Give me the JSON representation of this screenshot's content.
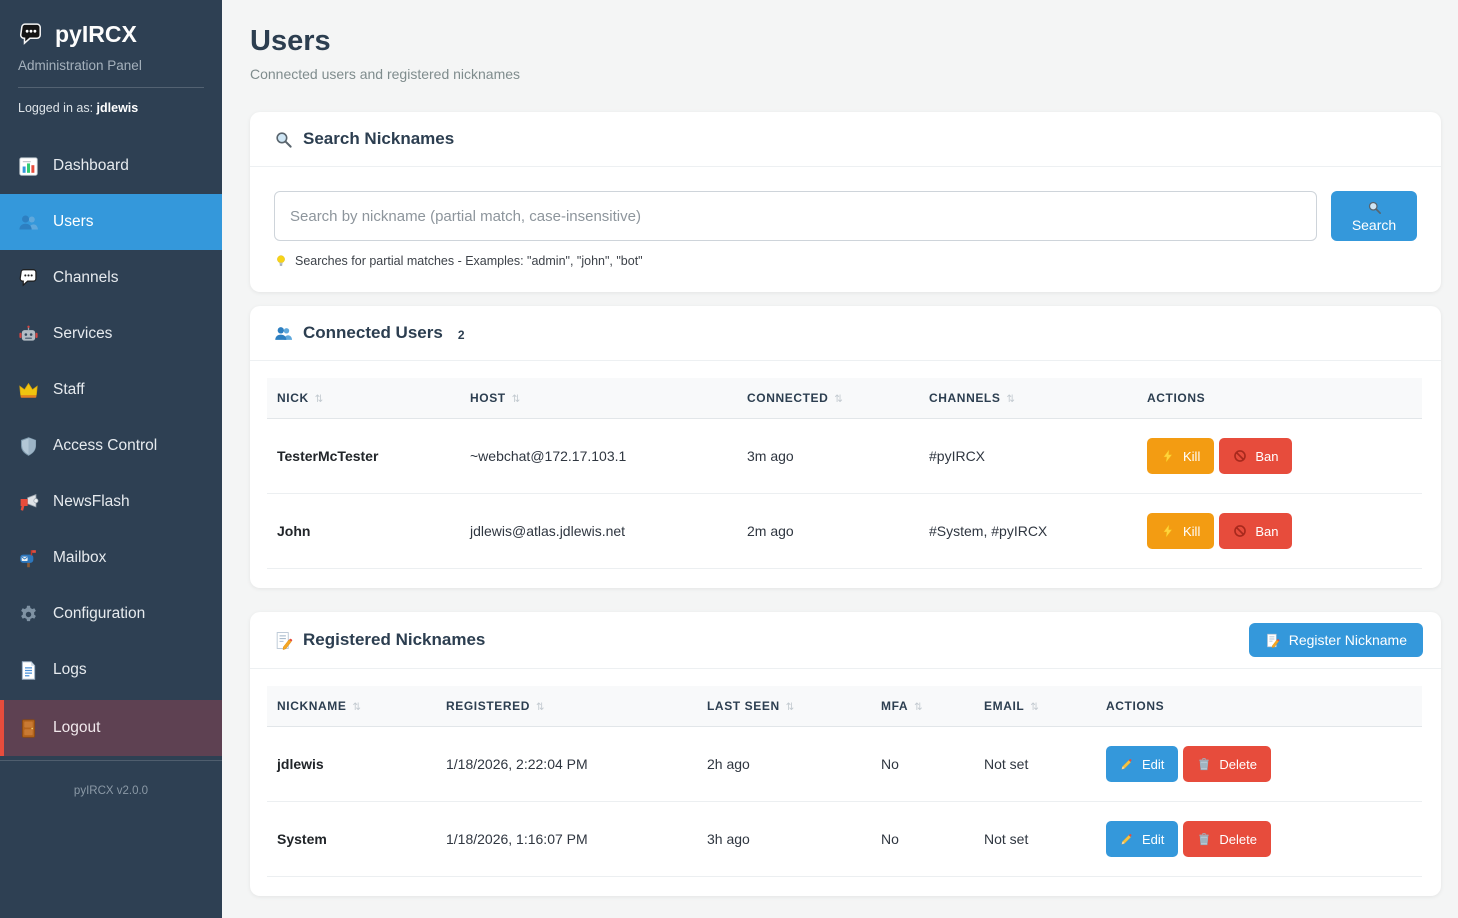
{
  "app": {
    "name": "pyIRCX",
    "subtitle": "Administration Panel",
    "logged_in_prefix": "Logged in as:",
    "logged_in_user": "jdlewis",
    "version": "pyIRCX v2.0.0",
    "logo_icon": "speech-bubble-icon"
  },
  "sidebar": {
    "items": [
      {
        "label": "Dashboard",
        "icon": "bar-chart-icon",
        "active": false
      },
      {
        "label": "Users",
        "icon": "users-icon",
        "active": true
      },
      {
        "label": "Channels",
        "icon": "speech-bubble-light-icon",
        "active": false
      },
      {
        "label": "Services",
        "icon": "robot-icon",
        "active": false
      },
      {
        "label": "Staff",
        "icon": "crown-icon",
        "active": false
      },
      {
        "label": "Access Control",
        "icon": "shield-icon",
        "active": false
      },
      {
        "label": "NewsFlash",
        "icon": "megaphone-icon",
        "active": false
      },
      {
        "label": "Mailbox",
        "icon": "mailbox-icon",
        "active": false
      },
      {
        "label": "Configuration",
        "icon": "gear-icon",
        "active": false
      },
      {
        "label": "Logs",
        "icon": "document-icon",
        "active": false
      }
    ],
    "logout": {
      "label": "Logout",
      "icon": "door-icon"
    }
  },
  "header": {
    "title": "Users",
    "subtitle": "Connected users and registered nicknames"
  },
  "search_card": {
    "icon": "magnifier-icon",
    "title": "Search Nicknames",
    "input_placeholder": "Search by nickname (partial match, case-insensitive)",
    "button_icon": "magnifier-icon",
    "button_label": "Search",
    "hint_icon": "lightbulb-icon",
    "hint_text": "Searches for partial matches - Examples: \"admin\", \"john\", \"bot\""
  },
  "connected_users": {
    "icon": "users-icon",
    "title": "Connected Users",
    "count": "2",
    "columns": [
      {
        "label": "NICK",
        "sortable": true
      },
      {
        "label": "HOST",
        "sortable": true
      },
      {
        "label": "CONNECTED",
        "sortable": true
      },
      {
        "label": "CHANNELS",
        "sortable": true
      },
      {
        "label": "ACTIONS",
        "sortable": false
      }
    ],
    "rows": [
      {
        "nick": "TesterMcTester",
        "host": "~webchat@172.17.103.1",
        "connected": "3m ago",
        "channels": "#pyIRCX"
      },
      {
        "nick": "John",
        "host": "jdlewis@atlas.jdlewis.net",
        "connected": "2m ago",
        "channels": "#System, #pyIRCX"
      }
    ],
    "actions": {
      "kill": {
        "label": "Kill",
        "icon": "lightning-icon",
        "color": "#f39c12"
      },
      "ban": {
        "label": "Ban",
        "icon": "ban-icon",
        "color": "#e74c3c"
      }
    }
  },
  "registered_nicknames": {
    "icon": "memo-icon",
    "title": "Registered Nicknames",
    "register_button": {
      "label": "Register Nickname",
      "icon": "memo-icon"
    },
    "columns": [
      {
        "label": "NICKNAME",
        "sortable": true
      },
      {
        "label": "REGISTERED",
        "sortable": true
      },
      {
        "label": "LAST SEEN",
        "sortable": true
      },
      {
        "label": "MFA",
        "sortable": true
      },
      {
        "label": "EMAIL",
        "sortable": true
      },
      {
        "label": "ACTIONS",
        "sortable": false
      }
    ],
    "rows": [
      {
        "nickname": "jdlewis",
        "registered": "1/18/2026, 2:22:04 PM",
        "last_seen": "2h ago",
        "mfa": "No",
        "email": "Not set"
      },
      {
        "nickname": "System",
        "registered": "1/18/2026, 1:16:07 PM",
        "last_seen": "3h ago",
        "mfa": "No",
        "email": "Not set"
      }
    ],
    "actions": {
      "edit": {
        "label": "Edit",
        "icon": "pencil-icon",
        "color": "#3498db"
      },
      "delete": {
        "label": "Delete",
        "icon": "trash-icon",
        "color": "#e74c3c"
      }
    }
  },
  "colors": {
    "accent_blue": "#3498db",
    "warn_orange": "#f39c12",
    "danger_red": "#e74c3c",
    "sidebar_bg": "#2e4053",
    "heading": "#2c3e50"
  },
  "sort_glyph": "⇅"
}
